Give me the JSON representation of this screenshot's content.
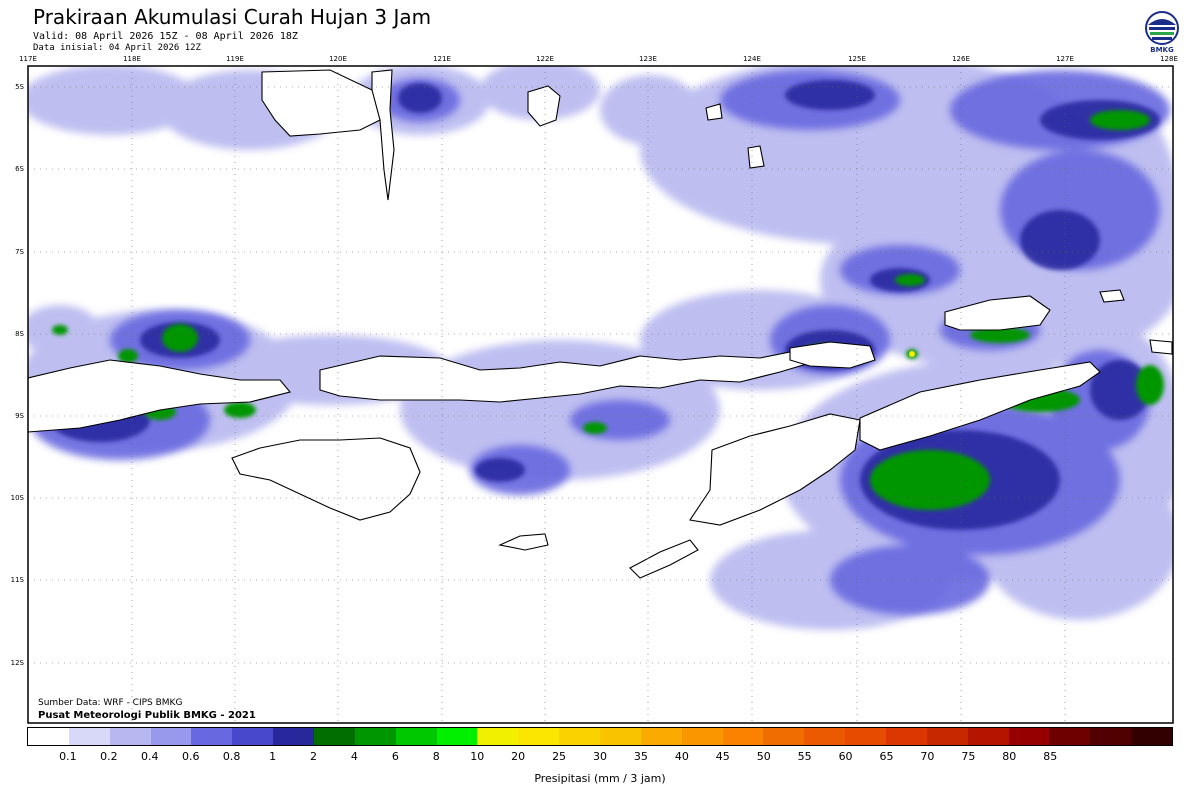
{
  "header": {
    "title": "Prakiraan Akumulasi Curah Hujan 3 Jam",
    "valid": "Valid: 08 April 2026 15Z - 08 April 2026 18Z",
    "initial": "Data inisial: 04 April 2026 12Z"
  },
  "logo": {
    "icon": "bmkg-logo-icon",
    "label": "BMKG"
  },
  "map": {
    "lon_ticks": [
      "117E",
      "118E",
      "119E",
      "120E",
      "121E",
      "122E",
      "123E",
      "124E",
      "125E",
      "126E",
      "127E",
      "128E"
    ],
    "lat_ticks": [
      "5S",
      "6S",
      "7S",
      "8S",
      "9S",
      "10S",
      "11S",
      "12S"
    ]
  },
  "footer": {
    "source": "Sumber Data: WRF - CIPS BMKG",
    "center": "Pusat Meteorologi Publik BMKG - 2021"
  },
  "colorbar": {
    "title": "Presipitasi (mm / 3 jam)",
    "colors": [
      "#ffffff",
      "#d8d8f8",
      "#b8b8f0",
      "#9898ec",
      "#6868e0",
      "#4848cc",
      "#28289c",
      "#006e00",
      "#009600",
      "#00c800",
      "#00f000",
      "#f0f000",
      "#fae600",
      "#fad200",
      "#fac300",
      "#faaa00",
      "#fa9600",
      "#fa8200",
      "#f06e00",
      "#eb5a00",
      "#e64b00",
      "#dc3700",
      "#c82800",
      "#b41400",
      "#960000",
      "#6e0000",
      "#500000",
      "#320000"
    ],
    "labels": [
      "0.1",
      "0.2",
      "0.4",
      "0.6",
      "0.8",
      "1",
      "2",
      "4",
      "6",
      "8",
      "10",
      "20",
      "25",
      "30",
      "35",
      "40",
      "45",
      "50",
      "55",
      "60",
      "65",
      "70",
      "75",
      "80",
      "85"
    ]
  }
}
